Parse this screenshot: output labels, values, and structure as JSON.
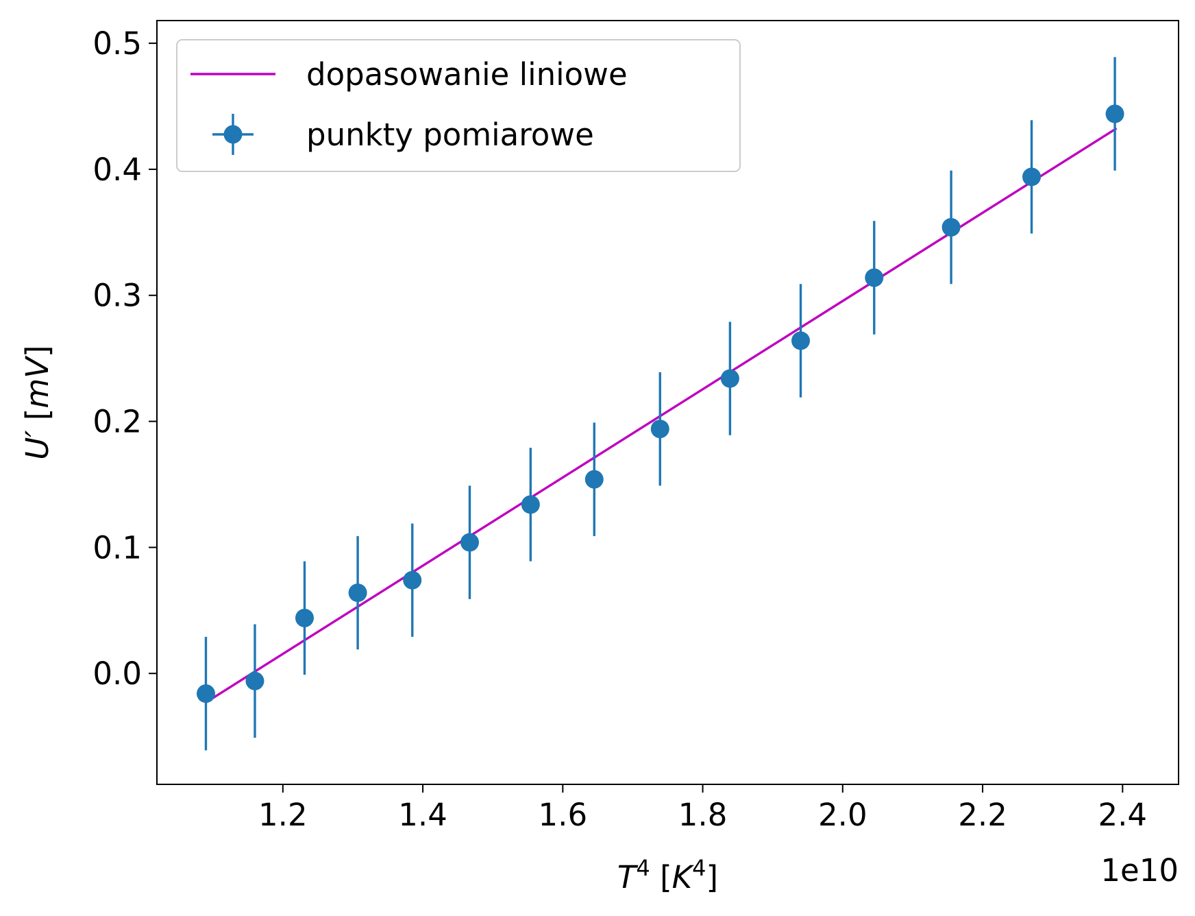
{
  "chart_data": {
    "type": "scatter",
    "title": "",
    "xlabel": {
      "base": "T",
      "sup": "4",
      "unit_base": "K",
      "unit_sup": "4"
    },
    "ylabel": {
      "base": "U",
      "prime": "′",
      "unit": "mV"
    },
    "x_offset_text": "1e10",
    "x_scale": 10000000000.0,
    "xlim": [
      1.02,
      2.48
    ],
    "ylim": [
      -0.088,
      0.518
    ],
    "xticks": [
      1.2,
      1.4,
      1.6,
      1.8,
      2.0,
      2.2,
      2.4
    ],
    "xtick_labels": [
      "1.2",
      "1.4",
      "1.6",
      "1.8",
      "2.0",
      "2.2",
      "2.4"
    ],
    "yticks": [
      0.0,
      0.1,
      0.2,
      0.3,
      0.4,
      0.5
    ],
    "ytick_labels": [
      "0.0",
      "0.1",
      "0.2",
      "0.3",
      "0.4",
      "0.5"
    ],
    "grid": false,
    "legend_position": "upper-left",
    "series": [
      {
        "name": "dopasowanie liniowe",
        "kind": "line",
        "color": "#bf00bf",
        "x": [
          1.09,
          2.39
        ],
        "y": [
          -0.023,
          0.432
        ]
      },
      {
        "name": "punkty pomiarowe",
        "kind": "errorbar",
        "color": "#1f77b4",
        "points": [
          {
            "x": 1.09,
            "y": -0.016,
            "xerr": 0.0,
            "yerr": 0.045
          },
          {
            "x": 1.16,
            "y": -0.006,
            "xerr": 0.0,
            "yerr": 0.045
          },
          {
            "x": 1.231,
            "y": 0.044,
            "xerr": 0.0,
            "yerr": 0.045
          },
          {
            "x": 1.307,
            "y": 0.064,
            "xerr": 0.006,
            "yerr": 0.045
          },
          {
            "x": 1.385,
            "y": 0.074,
            "xerr": 0.006,
            "yerr": 0.045
          },
          {
            "x": 1.467,
            "y": 0.104,
            "xerr": 0.008,
            "yerr": 0.045
          },
          {
            "x": 1.554,
            "y": 0.134,
            "xerr": 0.008,
            "yerr": 0.045
          },
          {
            "x": 1.645,
            "y": 0.154,
            "xerr": 0.008,
            "yerr": 0.045
          },
          {
            "x": 1.739,
            "y": 0.194,
            "xerr": 0.009,
            "yerr": 0.045
          },
          {
            "x": 1.839,
            "y": 0.234,
            "xerr": 0.01,
            "yerr": 0.045
          },
          {
            "x": 1.94,
            "y": 0.264,
            "xerr": 0.01,
            "yerr": 0.045
          },
          {
            "x": 2.045,
            "y": 0.314,
            "xerr": 0.01,
            "yerr": 0.045
          },
          {
            "x": 2.155,
            "y": 0.354,
            "xerr": 0.011,
            "yerr": 0.045
          },
          {
            "x": 2.27,
            "y": 0.394,
            "xerr": 0.011,
            "yerr": 0.045
          },
          {
            "x": 2.389,
            "y": 0.444,
            "xerr": 0.011,
            "yerr": 0.045
          }
        ]
      }
    ]
  }
}
